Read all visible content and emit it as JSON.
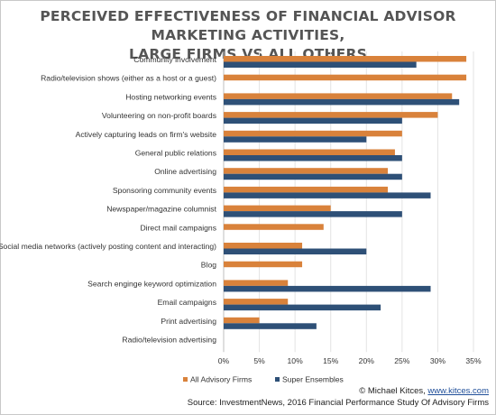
{
  "title_line1": "PERCEIVED EFFECTIVENESS OF FINANCIAL ADVISOR MARKETING ACTIVITIES,",
  "title_line2": "LARGE FIRMS VS ALL OTHERS",
  "credit_prefix": "© Michael Kitces, ",
  "credit_link": "www.kitces.com",
  "source": "Source: InvestmentNews, 2016 Financial Performance Study Of Advisory Firms",
  "chart_data": {
    "type": "bar",
    "orientation": "horizontal",
    "title": "PERCEIVED EFFECTIVENESS OF FINANCIAL ADVISOR MARKETING ACTIVITIES, LARGE FIRMS VS ALL OTHERS",
    "categories": [
      "Community involvement",
      "Radio/television shows (either as a host or a guest)",
      "Hosting networking events",
      "Volunteering on non-profit boards",
      "Actively capturing leads on firm's website",
      "General public relations",
      "Online advertising",
      "Sponsoring community events",
      "Newspaper/magazine columnist",
      "Direct mail campaigns",
      "Social media networks (actively posting content and interacting)",
      "Blog",
      "Search enginge keyword optimization",
      "Email campaigns",
      "Print advertising",
      "Radio/television advertising"
    ],
    "series": [
      {
        "name": "All Advisory Firms",
        "color": "#d9823b",
        "values": [
          34,
          34,
          32,
          30,
          25,
          24,
          23,
          23,
          15,
          14,
          11,
          11,
          9,
          9,
          5,
          0
        ]
      },
      {
        "name": "Super Ensembles",
        "color": "#2e5077",
        "values": [
          27,
          0,
          33,
          25,
          20,
          25,
          25,
          29,
          25,
          0,
          20,
          0,
          29,
          22,
          13,
          0
        ]
      }
    ],
    "xlim": [
      0,
      35
    ],
    "xticks": [
      "0%",
      "5%",
      "10%",
      "15%",
      "20%",
      "25%",
      "30%",
      "35%"
    ],
    "xtick_values": [
      0,
      5,
      10,
      15,
      20,
      25,
      30,
      35
    ],
    "grid": true,
    "legend_position": "bottom"
  }
}
